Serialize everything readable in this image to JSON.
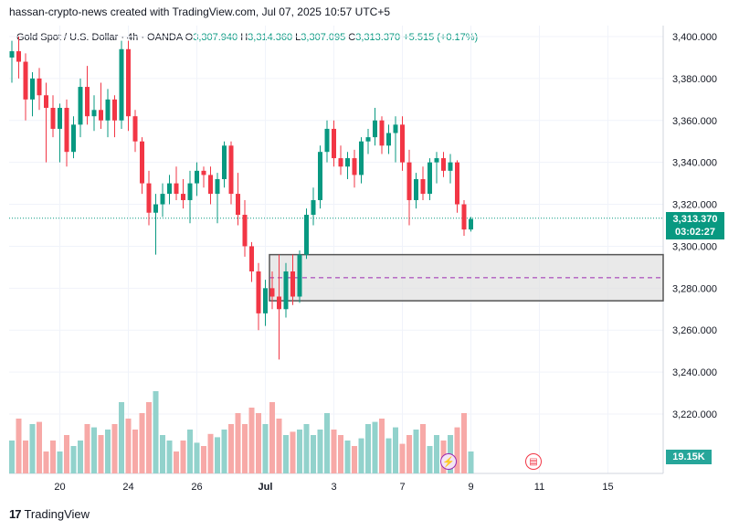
{
  "header": {
    "text": "hassan-crypto-news created with TradingView.com, Jul 07, 2025 10:57 UTC+5"
  },
  "symbol": {
    "name": "Gold Spot / U.S. Dollar · 4h · OANDA",
    "o_label": "O",
    "o": "3,307.940",
    "h_label": "H",
    "h": "3,314.360",
    "l_label": "L",
    "l": "3,307.095",
    "c_label": "C",
    "c": "3,313.370",
    "change": "+5.515 (+0.17%)"
  },
  "price_tag": {
    "price": "3,313.370",
    "countdown": "03:02:27"
  },
  "volume_tag": "19.15K",
  "footer": {
    "brand": "TradingView"
  },
  "icons": {
    "lightning": "lightning-icon",
    "flag": "us-flag-icon"
  },
  "colors": {
    "up": "#089981",
    "down": "#f23645",
    "vol_up": "#92d2cc",
    "vol_down": "#f7a9a7",
    "zone": "#e0e0e0",
    "midline": "#9c27b0"
  },
  "chart_data": {
    "type": "candlestick",
    "y_axis_ticks": [
      "3,400.000",
      "3,380.000",
      "3,360.000",
      "3,340.000",
      "3,320.000",
      "3,300.000",
      "3,280.000",
      "3,260.000",
      "3,240.000",
      "3,220.000"
    ],
    "ylim": [
      3210,
      3400
    ],
    "x_axis_ticks": [
      {
        "label": "20",
        "index": 7
      },
      {
        "label": "24",
        "index": 17
      },
      {
        "label": "26",
        "index": 27
      },
      {
        "label": "Jul",
        "index": 37
      },
      {
        "label": "3",
        "index": 47
      },
      {
        "label": "7",
        "index": 57
      },
      {
        "label": "9",
        "index": 67
      },
      {
        "label": "11",
        "index": 77
      },
      {
        "label": "15",
        "index": 87
      }
    ],
    "zone": {
      "top": 3296,
      "bottom": 3274,
      "mid": 3285,
      "start_index": 38
    },
    "current_price": 3313.37,
    "candles": [
      {
        "o": 3390,
        "h": 3398,
        "l": 3378,
        "c": 3393,
        "v": 0.3
      },
      {
        "o": 3393,
        "h": 3400,
        "l": 3380,
        "c": 3388,
        "v": 0.5
      },
      {
        "o": 3388,
        "h": 3392,
        "l": 3360,
        "c": 3370,
        "v": 0.3
      },
      {
        "o": 3370,
        "h": 3383,
        "l": 3362,
        "c": 3380,
        "v": 0.45
      },
      {
        "o": 3380,
        "h": 3385,
        "l": 3365,
        "c": 3372,
        "v": 0.47
      },
      {
        "o": 3372,
        "h": 3378,
        "l": 3340,
        "c": 3366,
        "v": 0.2
      },
      {
        "o": 3366,
        "h": 3372,
        "l": 3352,
        "c": 3356,
        "v": 0.3
      },
      {
        "o": 3356,
        "h": 3368,
        "l": 3340,
        "c": 3366,
        "v": 0.2
      },
      {
        "o": 3366,
        "h": 3370,
        "l": 3338,
        "c": 3345,
        "v": 0.35
      },
      {
        "o": 3345,
        "h": 3362,
        "l": 3342,
        "c": 3358,
        "v": 0.25
      },
      {
        "o": 3358,
        "h": 3380,
        "l": 3352,
        "c": 3376,
        "v": 0.3
      },
      {
        "o": 3376,
        "h": 3386,
        "l": 3358,
        "c": 3362,
        "v": 0.45
      },
      {
        "o": 3362,
        "h": 3372,
        "l": 3355,
        "c": 3365,
        "v": 0.42
      },
      {
        "o": 3365,
        "h": 3378,
        "l": 3356,
        "c": 3360,
        "v": 0.35
      },
      {
        "o": 3360,
        "h": 3375,
        "l": 3352,
        "c": 3370,
        "v": 0.4
      },
      {
        "o": 3370,
        "h": 3372,
        "l": 3352,
        "c": 3360,
        "v": 0.45
      },
      {
        "o": 3360,
        "h": 3398,
        "l": 3356,
        "c": 3394,
        "v": 0.65
      },
      {
        "o": 3394,
        "h": 3398,
        "l": 3355,
        "c": 3362,
        "v": 0.5
      },
      {
        "o": 3362,
        "h": 3365,
        "l": 3345,
        "c": 3350,
        "v": 0.4
      },
      {
        "o": 3350,
        "h": 3352,
        "l": 3325,
        "c": 3330,
        "v": 0.55
      },
      {
        "o": 3330,
        "h": 3336,
        "l": 3310,
        "c": 3316,
        "v": 0.65
      },
      {
        "o": 3316,
        "h": 3325,
        "l": 3296,
        "c": 3320,
        "v": 0.75
      },
      {
        "o": 3320,
        "h": 3330,
        "l": 3314,
        "c": 3325,
        "v": 0.35
      },
      {
        "o": 3325,
        "h": 3334,
        "l": 3320,
        "c": 3330,
        "v": 0.3
      },
      {
        "o": 3330,
        "h": 3338,
        "l": 3322,
        "c": 3325,
        "v": 0.2
      },
      {
        "o": 3325,
        "h": 3332,
        "l": 3318,
        "c": 3322,
        "v": 0.3
      },
      {
        "o": 3322,
        "h": 3336,
        "l": 3311,
        "c": 3330,
        "v": 0.4
      },
      {
        "o": 3330,
        "h": 3340,
        "l": 3324,
        "c": 3336,
        "v": 0.28
      },
      {
        "o": 3336,
        "h": 3338,
        "l": 3328,
        "c": 3334,
        "v": 0.25
      },
      {
        "o": 3334,
        "h": 3338,
        "l": 3320,
        "c": 3325,
        "v": 0.36
      },
      {
        "o": 3325,
        "h": 3335,
        "l": 3311,
        "c": 3332,
        "v": 0.33
      },
      {
        "o": 3332,
        "h": 3350,
        "l": 3328,
        "c": 3348,
        "v": 0.4
      },
      {
        "o": 3348,
        "h": 3350,
        "l": 3320,
        "c": 3325,
        "v": 0.45
      },
      {
        "o": 3325,
        "h": 3335,
        "l": 3310,
        "c": 3315,
        "v": 0.55
      },
      {
        "o": 3315,
        "h": 3322,
        "l": 3295,
        "c": 3300,
        "v": 0.45
      },
      {
        "o": 3300,
        "h": 3302,
        "l": 3283,
        "c": 3288,
        "v": 0.6
      },
      {
        "o": 3288,
        "h": 3292,
        "l": 3260,
        "c": 3268,
        "v": 0.55
      },
      {
        "o": 3268,
        "h": 3284,
        "l": 3262,
        "c": 3280,
        "v": 0.45
      },
      {
        "o": 3280,
        "h": 3288,
        "l": 3270,
        "c": 3276,
        "v": 0.65
      },
      {
        "o": 3276,
        "h": 3296,
        "l": 3246,
        "c": 3270,
        "v": 0.5
      },
      {
        "o": 3270,
        "h": 3292,
        "l": 3266,
        "c": 3288,
        "v": 0.35
      },
      {
        "o": 3288,
        "h": 3296,
        "l": 3272,
        "c": 3276,
        "v": 0.38
      },
      {
        "o": 3276,
        "h": 3298,
        "l": 3273,
        "c": 3296,
        "v": 0.4
      },
      {
        "o": 3296,
        "h": 3318,
        "l": 3294,
        "c": 3315,
        "v": 0.45
      },
      {
        "o": 3315,
        "h": 3328,
        "l": 3310,
        "c": 3322,
        "v": 0.35
      },
      {
        "o": 3322,
        "h": 3348,
        "l": 3318,
        "c": 3345,
        "v": 0.4
      },
      {
        "o": 3345,
        "h": 3360,
        "l": 3340,
        "c": 3356,
        "v": 0.55
      },
      {
        "o": 3356,
        "h": 3360,
        "l": 3338,
        "c": 3342,
        "v": 0.4
      },
      {
        "o": 3342,
        "h": 3348,
        "l": 3334,
        "c": 3338,
        "v": 0.35
      },
      {
        "o": 3338,
        "h": 3345,
        "l": 3332,
        "c": 3342,
        "v": 0.3
      },
      {
        "o": 3342,
        "h": 3346,
        "l": 3328,
        "c": 3334,
        "v": 0.25
      },
      {
        "o": 3334,
        "h": 3352,
        "l": 3330,
        "c": 3350,
        "v": 0.32
      },
      {
        "o": 3350,
        "h": 3356,
        "l": 3344,
        "c": 3352,
        "v": 0.45
      },
      {
        "o": 3352,
        "h": 3366,
        "l": 3348,
        "c": 3360,
        "v": 0.47
      },
      {
        "o": 3360,
        "h": 3362,
        "l": 3344,
        "c": 3348,
        "v": 0.5
      },
      {
        "o": 3348,
        "h": 3358,
        "l": 3344,
        "c": 3354,
        "v": 0.32
      },
      {
        "o": 3354,
        "h": 3362,
        "l": 3340,
        "c": 3358,
        "v": 0.42
      },
      {
        "o": 3358,
        "h": 3362,
        "l": 3336,
        "c": 3340,
        "v": 0.27
      },
      {
        "o": 3340,
        "h": 3346,
        "l": 3310,
        "c": 3322,
        "v": 0.35
      },
      {
        "o": 3322,
        "h": 3335,
        "l": 3318,
        "c": 3332,
        "v": 0.4
      },
      {
        "o": 3332,
        "h": 3338,
        "l": 3322,
        "c": 3325,
        "v": 0.45
      },
      {
        "o": 3325,
        "h": 3342,
        "l": 3322,
        "c": 3340,
        "v": 0.25
      },
      {
        "o": 3340,
        "h": 3345,
        "l": 3330,
        "c": 3342,
        "v": 0.35
      },
      {
        "o": 3342,
        "h": 3345,
        "l": 3333,
        "c": 3336,
        "v": 0.3
      },
      {
        "o": 3336,
        "h": 3344,
        "l": 3330,
        "c": 3340,
        "v": 0.35
      },
      {
        "o": 3340,
        "h": 3341,
        "l": 3316,
        "c": 3320,
        "v": 0.42
      },
      {
        "o": 3320,
        "h": 3322,
        "l": 3305,
        "c": 3308,
        "v": 0.55
      },
      {
        "o": 3308,
        "h": 3314,
        "l": 3307,
        "c": 3313,
        "v": 0.2
      }
    ]
  }
}
